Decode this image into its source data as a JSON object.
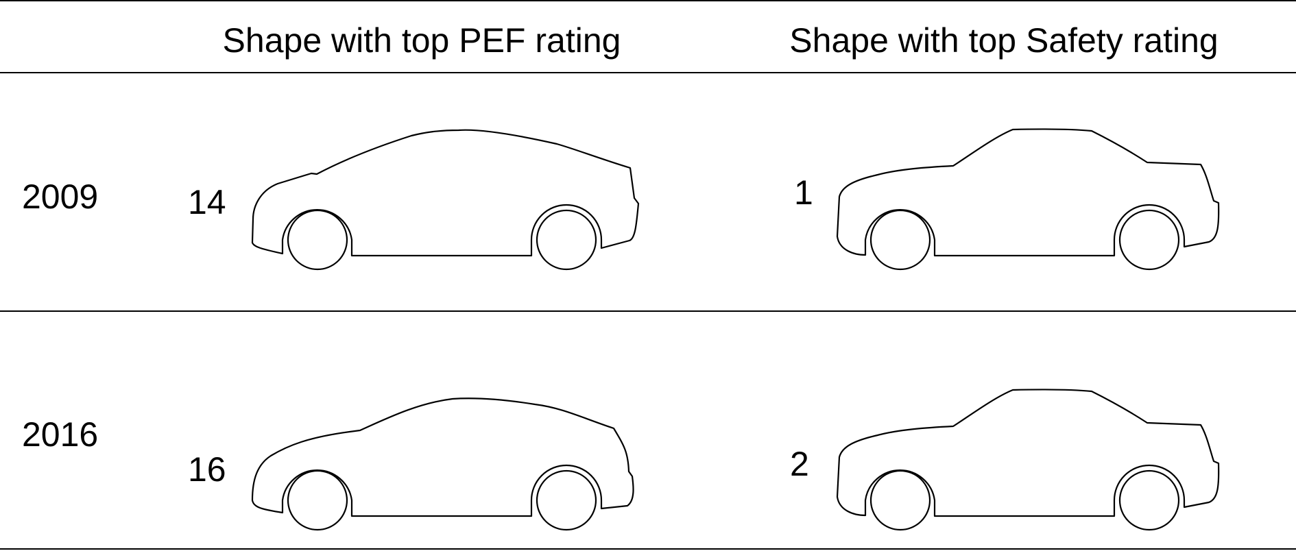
{
  "header": {
    "col1": "Shape with top PEF rating",
    "col2": "Shape with top Safety rating"
  },
  "rows": [
    {
      "year": "2009",
      "pef_number": "14",
      "safety_number": "1",
      "pef_shape_icon": "hatchback-car-outline",
      "safety_shape_icon": "sedan-car-outline"
    },
    {
      "year": "2016",
      "pef_number": "16",
      "safety_number": "2",
      "pef_shape_icon": "hatchback-car-outline",
      "safety_shape_icon": "sedan-car-outline"
    }
  ]
}
